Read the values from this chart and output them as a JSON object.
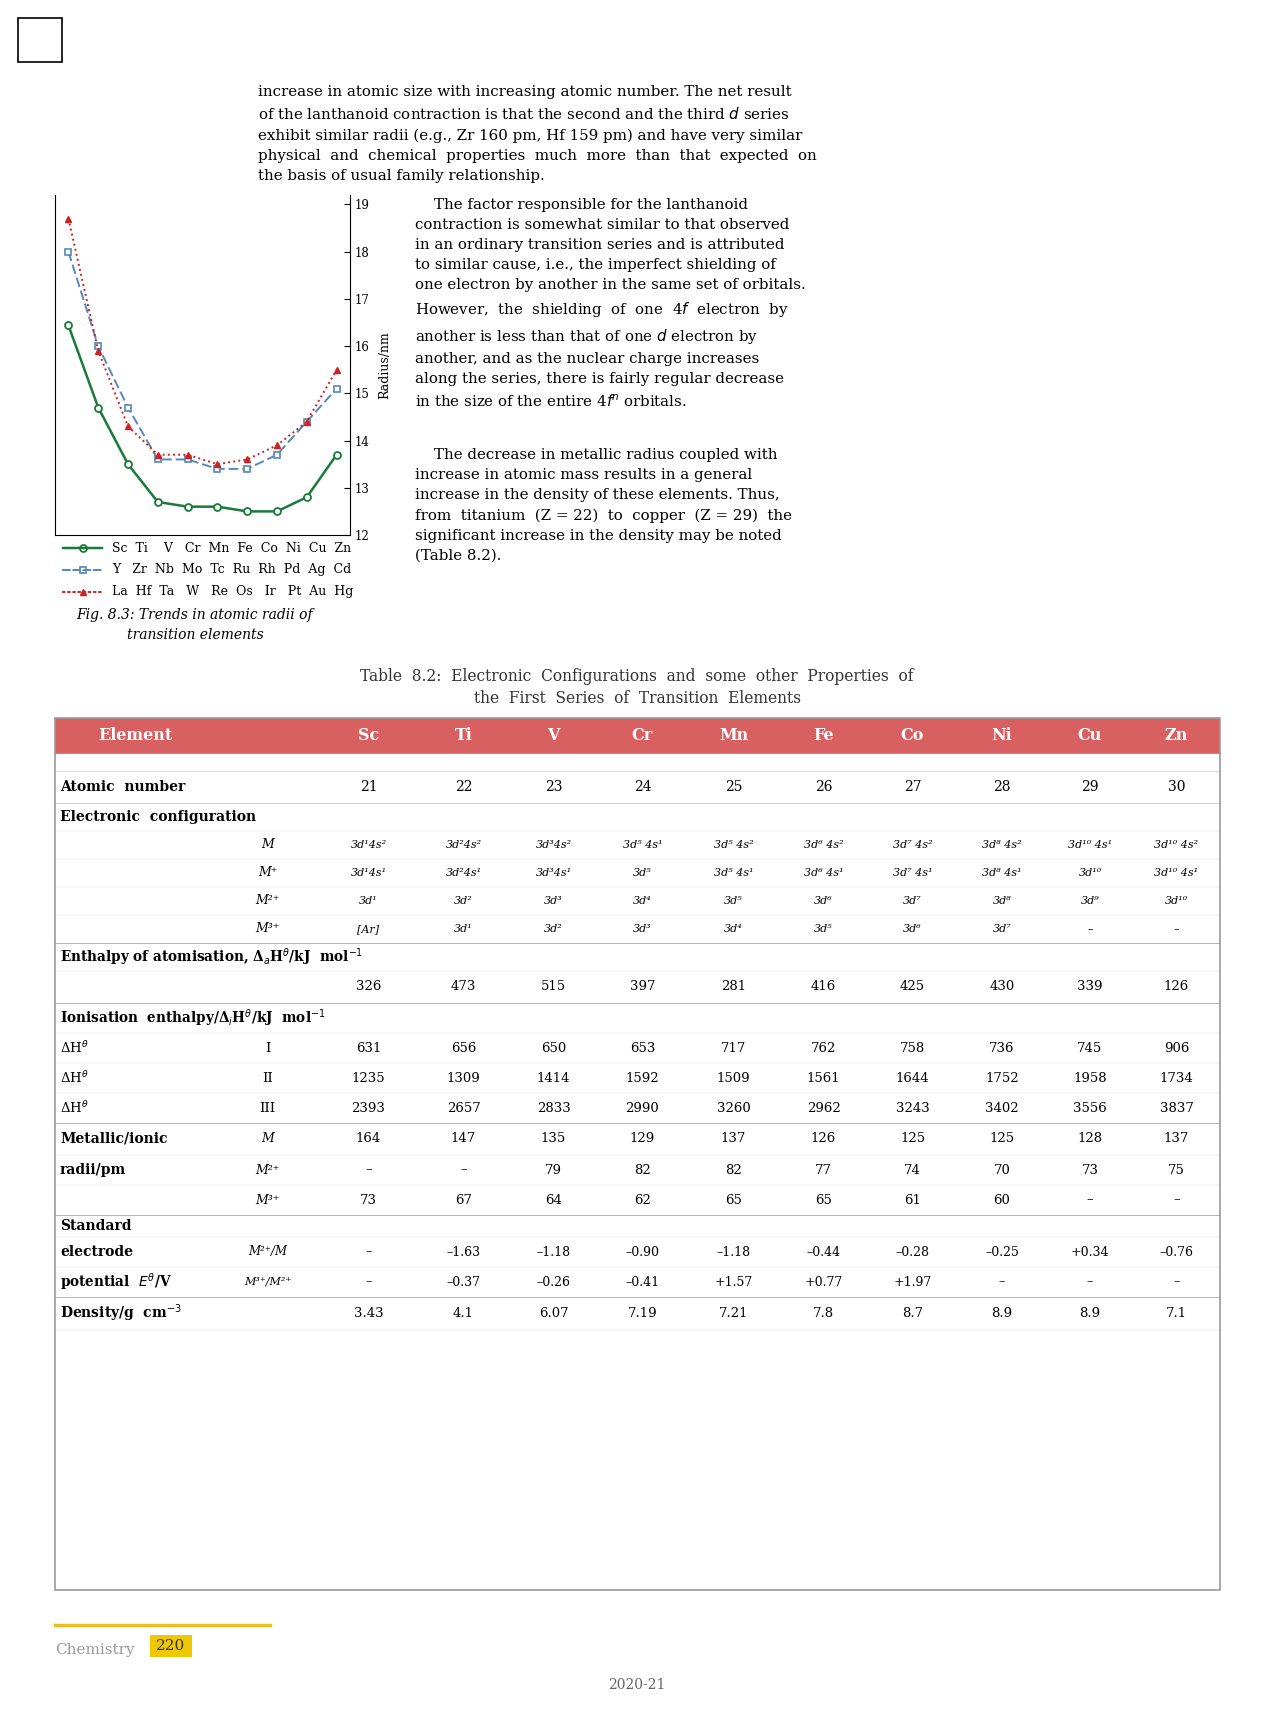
{
  "page_bg": "#ffffff",
  "series1_color": "#1a7a3a",
  "series2_color": "#5588bb",
  "series3_color": "#cc2222",
  "series1_y": [
    16.44,
    14.7,
    13.5,
    12.7,
    12.6,
    12.6,
    12.5,
    12.5,
    12.8,
    13.7
  ],
  "series2_y": [
    18.0,
    16.0,
    14.7,
    13.6,
    13.6,
    13.4,
    13.4,
    13.7,
    14.4,
    15.1
  ],
  "series3_y": [
    18.7,
    15.9,
    14.3,
    13.7,
    13.7,
    13.5,
    13.6,
    13.9,
    14.4,
    15.5
  ],
  "graph_yticks": [
    12,
    13,
    14,
    15,
    16,
    17,
    18,
    19
  ],
  "header_bg": "#d96060",
  "header_text_color": "#ffffff",
  "elements": [
    "Sc",
    "Ti",
    "V",
    "Cr",
    "Mn",
    "Fe",
    "Co",
    "Ni",
    "Cu",
    "Zn"
  ],
  "atomic_numbers": [
    21,
    22,
    23,
    24,
    25,
    26,
    27,
    28,
    29,
    30
  ],
  "enthalpy_atomisation": [
    326,
    473,
    515,
    397,
    281,
    416,
    425,
    430,
    339,
    126
  ],
  "ionisation_I": [
    631,
    656,
    650,
    653,
    717,
    762,
    758,
    736,
    745,
    906
  ],
  "ionisation_II": [
    1235,
    1309,
    1414,
    1592,
    1509,
    1561,
    1644,
    1752,
    1958,
    1734
  ],
  "ionisation_III": [
    2393,
    2657,
    2833,
    2990,
    3260,
    2962,
    3243,
    3402,
    3556,
    3837
  ],
  "metallic_M": [
    164,
    147,
    135,
    129,
    137,
    126,
    125,
    125,
    128,
    137
  ],
  "metallic_M2": [
    "–",
    "–",
    "79",
    "82",
    "82",
    "77",
    "74",
    "70",
    "73",
    "75"
  ],
  "metallic_M3": [
    "73",
    "67",
    "64",
    "62",
    "65",
    "65",
    "61",
    "60",
    "–",
    "–"
  ],
  "electrode_M2_M": [
    "–",
    "–1.63",
    "–1.18",
    "–0.90",
    "–1.18",
    "–0.44",
    "–0.28",
    "–0.25",
    "+0.34",
    "–0.76"
  ],
  "electrode_M3_M2": [
    "–",
    "–0.37",
    "–0.26",
    "–0.41",
    "+1.57",
    "+0.77",
    "+1.97",
    "–",
    "–",
    "–"
  ],
  "density": [
    "3.43",
    "4.1",
    "6.07",
    "7.19",
    "7.21",
    "7.8",
    "8.7",
    "8.9",
    "8.9",
    "7.1"
  ],
  "page_number": "2020-21"
}
